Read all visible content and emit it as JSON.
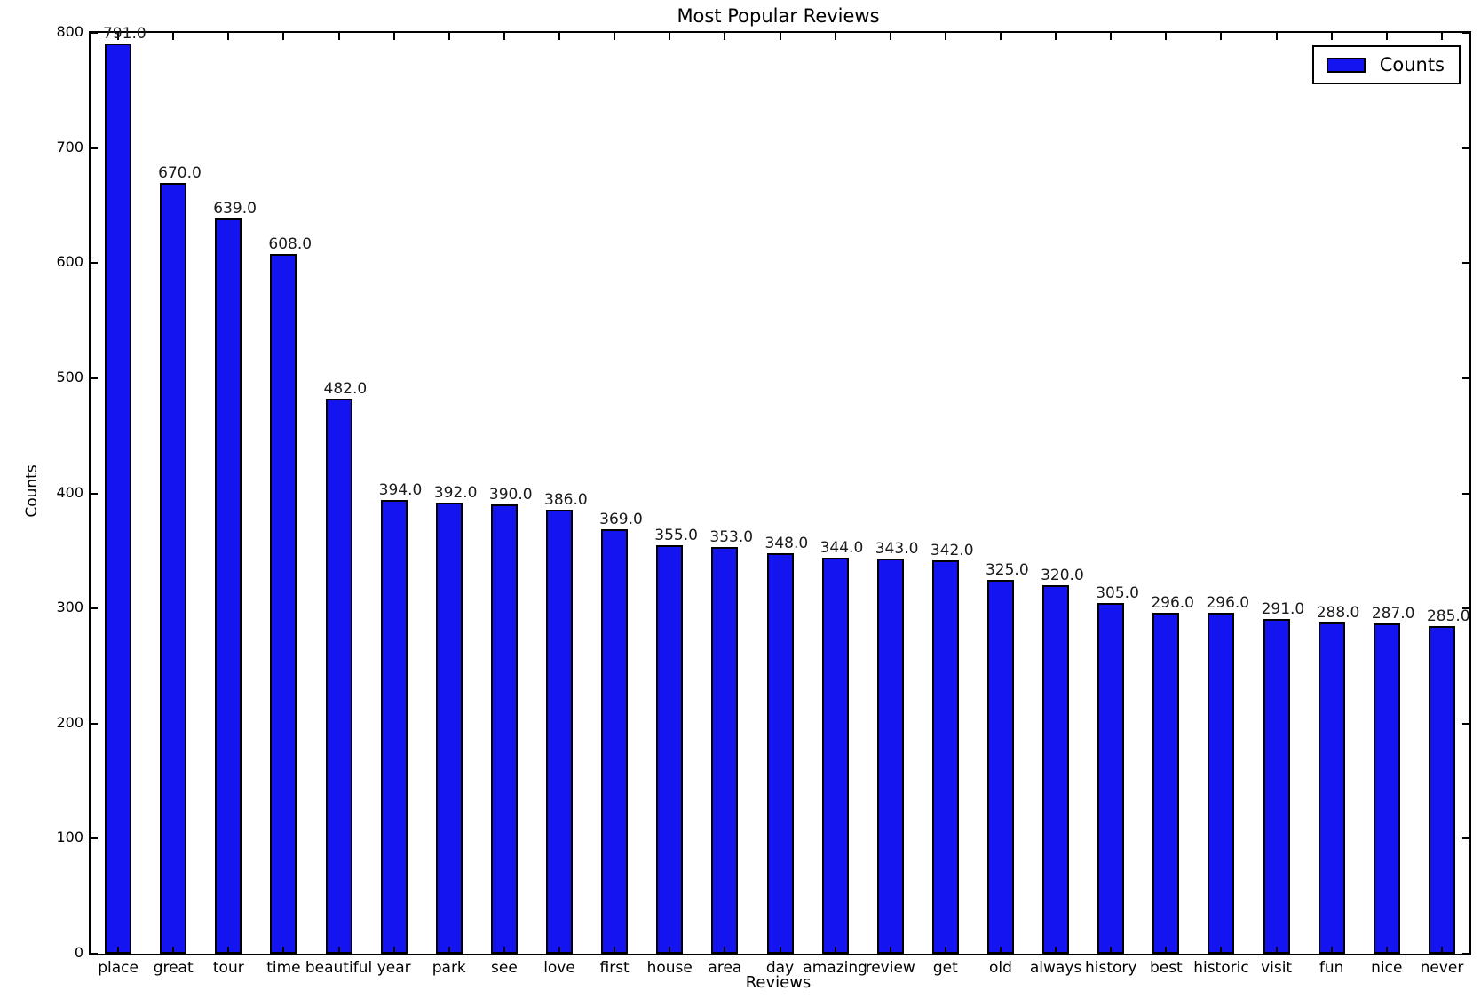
{
  "chart_data": {
    "type": "bar",
    "title": "Most Popular Reviews",
    "xlabel": "Reviews",
    "ylabel": "Counts",
    "categories": [
      "place",
      "great",
      "tour",
      "time",
      "beautiful",
      "year",
      "park",
      "see",
      "love",
      "first",
      "house",
      "area",
      "day",
      "amazing",
      "review",
      "get",
      "old",
      "always",
      "history",
      "best",
      "historic",
      "visit",
      "fun",
      "nice",
      "never"
    ],
    "values": [
      791,
      670,
      639,
      608,
      482,
      394,
      392,
      390,
      386,
      369,
      355,
      353,
      348,
      344,
      343,
      342,
      325,
      320,
      305,
      296,
      296,
      291,
      288,
      287,
      285
    ],
    "value_label_decimals": 1,
    "ylim": [
      0,
      800
    ],
    "yticks": [
      0,
      100,
      200,
      300,
      400,
      500,
      600,
      700,
      800
    ],
    "grid": false,
    "bar_color": "#1414f0",
    "bar_edge_color": "#000000",
    "legend": {
      "entries": [
        "Counts"
      ],
      "position": "upper right"
    }
  }
}
